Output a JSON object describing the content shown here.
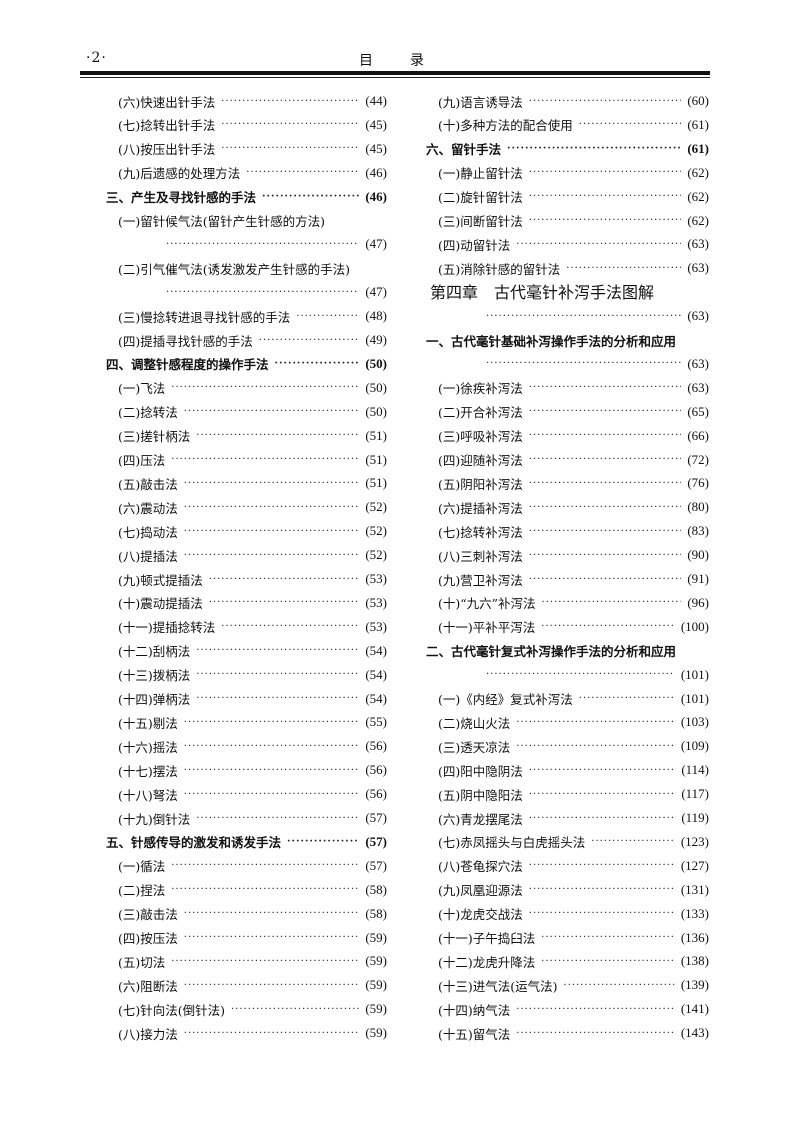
{
  "header": {
    "page_number": "·2·",
    "title_1": "目",
    "title_2": "录"
  },
  "left": [
    {
      "kind": "item",
      "title": "(六)快速出针手法",
      "page": "(44)"
    },
    {
      "kind": "item",
      "title": "(七)捻转出针手法",
      "page": "(45)"
    },
    {
      "kind": "item",
      "title": "(八)按压出针手法",
      "page": "(45)"
    },
    {
      "kind": "item",
      "title": "(九)后遗感的处理方法",
      "page": "(46)"
    },
    {
      "kind": "section",
      "title": "三、产生及寻找针感的手法",
      "page": "(46)"
    },
    {
      "kind": "item wrap",
      "title": "(一)留针候气法(留针产生针感的方法)",
      "page": ""
    },
    {
      "kind": "cont",
      "title": "",
      "page": "(47)"
    },
    {
      "kind": "item wrap",
      "title": "(二)引气催气法(诱发激发产生针感的手法)",
      "page": ""
    },
    {
      "kind": "cont",
      "title": "",
      "page": "(47)"
    },
    {
      "kind": "item",
      "title": "(三)慢捻转进退寻找针感的手法",
      "page": "(48)"
    },
    {
      "kind": "item",
      "title": "(四)提插寻找针感的手法",
      "page": "(49)"
    },
    {
      "kind": "section",
      "title": "四、调整针感程度的操作手法",
      "page": "(50)"
    },
    {
      "kind": "item",
      "title": "(一)飞法",
      "page": "(50)"
    },
    {
      "kind": "item",
      "title": "(二)捻转法",
      "page": "(50)"
    },
    {
      "kind": "item",
      "title": "(三)搓针柄法",
      "page": "(51)"
    },
    {
      "kind": "item",
      "title": "(四)压法",
      "page": "(51)"
    },
    {
      "kind": "item",
      "title": "(五)敲击法",
      "page": "(51)"
    },
    {
      "kind": "item",
      "title": "(六)震动法",
      "page": "(52)"
    },
    {
      "kind": "item",
      "title": "(七)捣动法",
      "page": "(52)"
    },
    {
      "kind": "item",
      "title": "(八)提插法",
      "page": "(52)"
    },
    {
      "kind": "item",
      "title": "(九)顿式提插法",
      "page": "(53)"
    },
    {
      "kind": "item",
      "title": "(十)震动提插法",
      "page": "(53)"
    },
    {
      "kind": "item",
      "title": "(十一)提插捻转法",
      "page": "(53)"
    },
    {
      "kind": "item",
      "title": "(十二)刮柄法",
      "page": "(54)"
    },
    {
      "kind": "item",
      "title": "(十三)拨柄法",
      "page": "(54)"
    },
    {
      "kind": "item",
      "title": "(十四)弹柄法",
      "page": "(54)"
    },
    {
      "kind": "item",
      "title": "(十五)剔法",
      "page": "(55)"
    },
    {
      "kind": "item",
      "title": "(十六)摇法",
      "page": "(56)"
    },
    {
      "kind": "item",
      "title": "(十七)摆法",
      "page": "(56)"
    },
    {
      "kind": "item",
      "title": "(十八)弩法",
      "page": "(56)"
    },
    {
      "kind": "item",
      "title": "(十九)倒针法",
      "page": "(57)"
    },
    {
      "kind": "section",
      "title": "五、针感传导的激发和诱发手法",
      "page": "(57)"
    },
    {
      "kind": "item",
      "title": "(一)循法",
      "page": "(57)"
    },
    {
      "kind": "item",
      "title": "(二)捏法",
      "page": "(58)"
    },
    {
      "kind": "item",
      "title": "(三)敲击法",
      "page": "(58)"
    },
    {
      "kind": "item",
      "title": "(四)按压法",
      "page": "(59)"
    },
    {
      "kind": "item",
      "title": "(五)切法",
      "page": "(59)"
    },
    {
      "kind": "item",
      "title": "(六)阻断法",
      "page": "(59)"
    },
    {
      "kind": "item",
      "title": "(七)针向法(倒针法)",
      "page": "(59)"
    },
    {
      "kind": "item",
      "title": "(八)接力法",
      "page": "(59)"
    }
  ],
  "right": [
    {
      "kind": "item",
      "title": "(九)语言诱导法",
      "page": "(60)"
    },
    {
      "kind": "item",
      "title": "(十)多种方法的配合使用",
      "page": "(61)"
    },
    {
      "kind": "section",
      "title": "六、留针手法",
      "page": "(61)"
    },
    {
      "kind": "item",
      "title": "(一)静止留针法",
      "page": "(62)"
    },
    {
      "kind": "item",
      "title": "(二)旋针留针法",
      "page": "(62)"
    },
    {
      "kind": "item",
      "title": "(三)间断留针法",
      "page": "(62)"
    },
    {
      "kind": "item",
      "title": "(四)动留针法",
      "page": "(63)"
    },
    {
      "kind": "item",
      "title": "(五)消除针感的留针法",
      "page": "(63)"
    },
    {
      "kind": "chapter",
      "title": "第四章　古代毫针补泻手法图解",
      "page": ""
    },
    {
      "kind": "cont",
      "title": "",
      "page": "(63)"
    },
    {
      "kind": "section wrap",
      "title": "一、古代毫针基础补泻操作手法的分析和应用",
      "page": ""
    },
    {
      "kind": "cont",
      "title": "",
      "page": "(63)"
    },
    {
      "kind": "item",
      "title": "(一)徐疾补泻法",
      "page": "(63)"
    },
    {
      "kind": "item",
      "title": "(二)开合补泻法",
      "page": "(65)"
    },
    {
      "kind": "item",
      "title": "(三)呼吸补泻法",
      "page": "(66)"
    },
    {
      "kind": "item",
      "title": "(四)迎随补泻法",
      "page": "(72)"
    },
    {
      "kind": "item",
      "title": "(五)阴阳补泻法",
      "page": "(76)"
    },
    {
      "kind": "item",
      "title": "(六)提插补泻法",
      "page": "(80)"
    },
    {
      "kind": "item",
      "title": "(七)捻转补泻法",
      "page": "(83)"
    },
    {
      "kind": "item",
      "title": "(八)三刺补泻法",
      "page": "(90)"
    },
    {
      "kind": "item",
      "title": "(九)营卫补泻法",
      "page": "(91)"
    },
    {
      "kind": "item",
      "title": "(十)“九六”补泻法",
      "page": "(96)"
    },
    {
      "kind": "item",
      "title": "(十一)平补平泻法",
      "page": "(100)"
    },
    {
      "kind": "section wrap",
      "title": "二、古代毫针复式补泻操作手法的分析和应用",
      "page": ""
    },
    {
      "kind": "cont",
      "title": "",
      "page": "(101)"
    },
    {
      "kind": "item",
      "title": "(一)《内经》复式补泻法",
      "page": "(101)"
    },
    {
      "kind": "item",
      "title": "(二)烧山火法",
      "page": "(103)"
    },
    {
      "kind": "item",
      "title": "(三)透天凉法",
      "page": "(109)"
    },
    {
      "kind": "item",
      "title": "(四)阳中隐阴法",
      "page": "(114)"
    },
    {
      "kind": "item",
      "title": "(五)阴中隐阳法",
      "page": "(117)"
    },
    {
      "kind": "item",
      "title": "(六)青龙摆尾法",
      "page": "(119)"
    },
    {
      "kind": "item",
      "title": "(七)赤凤摇头与白虎摇头法",
      "page": "(123)"
    },
    {
      "kind": "item",
      "title": "(八)苍龟探穴法",
      "page": "(127)"
    },
    {
      "kind": "item",
      "title": "(九)凤凰迎源法",
      "page": "(131)"
    },
    {
      "kind": "item",
      "title": "(十)龙虎交战法",
      "page": "(133)"
    },
    {
      "kind": "item",
      "title": "(十一)子午捣臼法",
      "page": "(136)"
    },
    {
      "kind": "item",
      "title": "(十二)龙虎升降法",
      "page": "(138)"
    },
    {
      "kind": "item",
      "title": "(十三)进气法(运气法)",
      "page": "(139)"
    },
    {
      "kind": "item",
      "title": "(十四)纳气法",
      "page": "(141)"
    },
    {
      "kind": "item",
      "title": "(十五)留气法",
      "page": "(143)"
    }
  ]
}
